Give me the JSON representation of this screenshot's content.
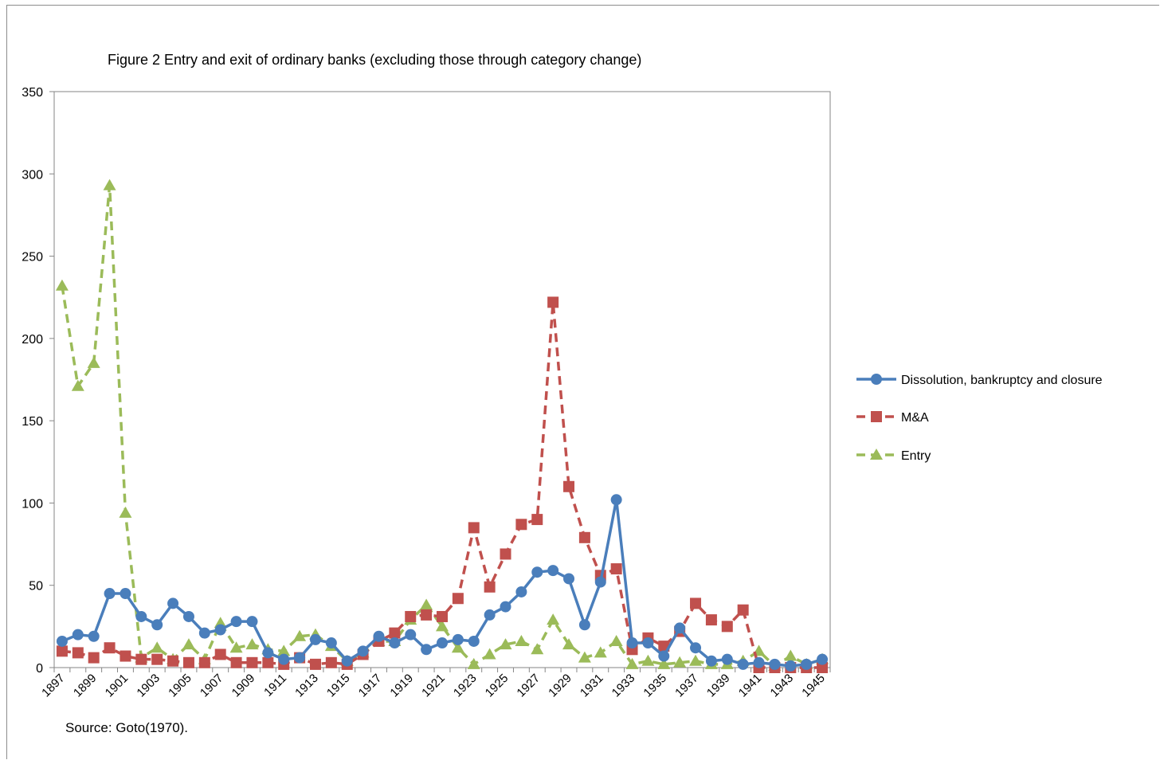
{
  "source_note": "Source: Goto(1970).",
  "colors": {
    "dissolution": "#4a7ebb",
    "ma": "#c0504d",
    "entry": "#9bbb59",
    "axis": "#868686"
  },
  "chart_data": {
    "type": "line",
    "title": "Figure 2 Entry and exit of ordinary banks (excluding those through category change)",
    "xlabel": "",
    "ylabel": "",
    "ylim": [
      0,
      350
    ],
    "yticks": [
      0,
      50,
      100,
      150,
      200,
      250,
      300,
      350
    ],
    "legend_position": "right",
    "grid": false,
    "x": [
      1897,
      1898,
      1899,
      1900,
      1901,
      1902,
      1903,
      1904,
      1905,
      1906,
      1907,
      1908,
      1909,
      1910,
      1911,
      1912,
      1913,
      1914,
      1915,
      1916,
      1917,
      1918,
      1919,
      1920,
      1921,
      1922,
      1923,
      1924,
      1925,
      1926,
      1927,
      1928,
      1929,
      1930,
      1931,
      1932,
      1933,
      1934,
      1935,
      1936,
      1937,
      1938,
      1939,
      1940,
      1941,
      1942,
      1943,
      1944,
      1945
    ],
    "x_tick_labels": [
      "1897",
      "1899",
      "1901",
      "1903",
      "1905",
      "1907",
      "1909",
      "1911",
      "1913",
      "1915",
      "1917",
      "1919",
      "1921",
      "1923",
      "1925",
      "1927",
      "1929",
      "1931",
      "1933",
      "1935",
      "1937",
      "1939",
      "1941",
      "1943",
      "1945"
    ],
    "series": [
      {
        "name": "Dissolution, bankruptcy and closure",
        "marker": "circle",
        "dash": "solid",
        "values": [
          16,
          20,
          19,
          45,
          45,
          31,
          26,
          39,
          31,
          21,
          23,
          28,
          28,
          9,
          5,
          6,
          17,
          15,
          4,
          10,
          19,
          15,
          20,
          11,
          15,
          17,
          16,
          32,
          37,
          46,
          58,
          59,
          54,
          26,
          52,
          102,
          15,
          15,
          7,
          24,
          12,
          4,
          5,
          2,
          3,
          2,
          1,
          2,
          5
        ]
      },
      {
        "name": "M&A",
        "marker": "square",
        "dash": "dashed",
        "values": [
          10,
          9,
          6,
          12,
          7,
          5,
          5,
          4,
          3,
          3,
          8,
          3,
          3,
          3,
          2,
          6,
          2,
          3,
          2,
          8,
          16,
          21,
          31,
          32,
          31,
          42,
          85,
          49,
          69,
          87,
          90,
          222,
          110,
          79,
          56,
          60,
          11,
          18,
          13,
          22,
          39,
          29,
          25,
          35,
          0,
          0,
          0,
          0,
          0
        ]
      },
      {
        "name": "Entry",
        "marker": "triangle",
        "dash": "dashed",
        "values": [
          232,
          171,
          185,
          293,
          94,
          6,
          12,
          5,
          14,
          5,
          27,
          12,
          14,
          11,
          10,
          19,
          20,
          13,
          4,
          9,
          16,
          16,
          29,
          38,
          25,
          12,
          2,
          8,
          14,
          16,
          11,
          29,
          14,
          6,
          9,
          16,
          2,
          4,
          2,
          3,
          4,
          2,
          2,
          4,
          10,
          1,
          7,
          2,
          5
        ]
      }
    ]
  }
}
